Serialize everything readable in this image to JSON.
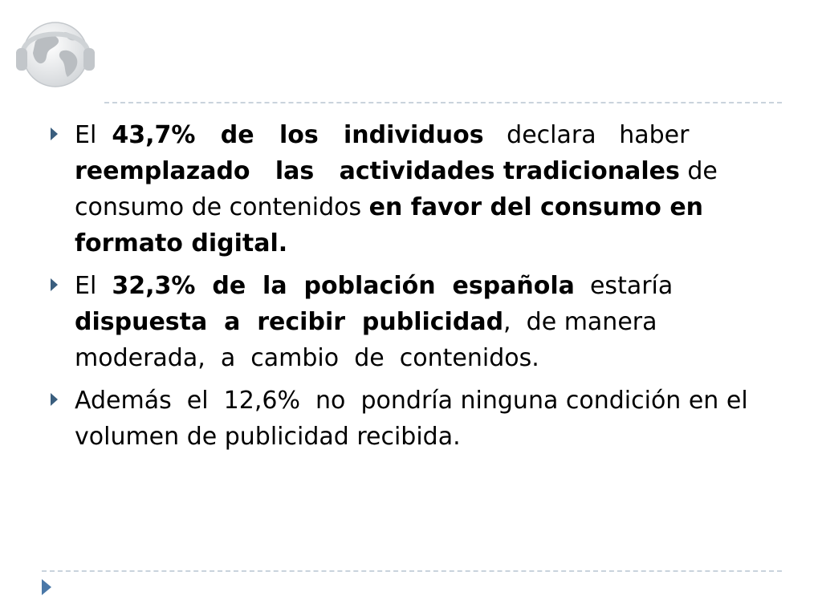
{
  "slide": {
    "bullets": [
      {
        "segments": [
          {
            "text": "El  ",
            "bold": false
          },
          {
            "text": "43,7%   de   los   individuos",
            "bold": true
          },
          {
            "text": "   declara   haber ",
            "bold": false
          },
          {
            "text": "reemplazado   las   actividades tradicionales",
            "bold": true
          },
          {
            "text": " de consumo de contenidos ",
            "bold": false
          },
          {
            "text": "en favor del consumo en formato digital.",
            "bold": true
          }
        ]
      },
      {
        "segments": [
          {
            "text": "El  ",
            "bold": false
          },
          {
            "text": "32,3%  de  la  población  española",
            "bold": true
          },
          {
            "text": "  estaría ",
            "bold": false
          },
          {
            "text": "dispuesta  a  recibir  publicidad",
            "bold": true
          },
          {
            "text": ",  de manera moderada,  a  cambio  de  contenidos.",
            "bold": false
          }
        ]
      },
      {
        "segments": [
          {
            "text": "Además  el  12,6%  no  pondría ninguna condición en el volumen de publicidad recibida.",
            "bold": false
          }
        ]
      }
    ]
  },
  "colors": {
    "bullet_arrow": "#3a5e7e",
    "divider": "#c9d3dc",
    "nav_arrow": "#4a78a8"
  },
  "icons": {
    "logo": "globe-headphones-icon",
    "bullet": "triangle-right-icon",
    "nav": "next-slide-arrow-icon"
  }
}
